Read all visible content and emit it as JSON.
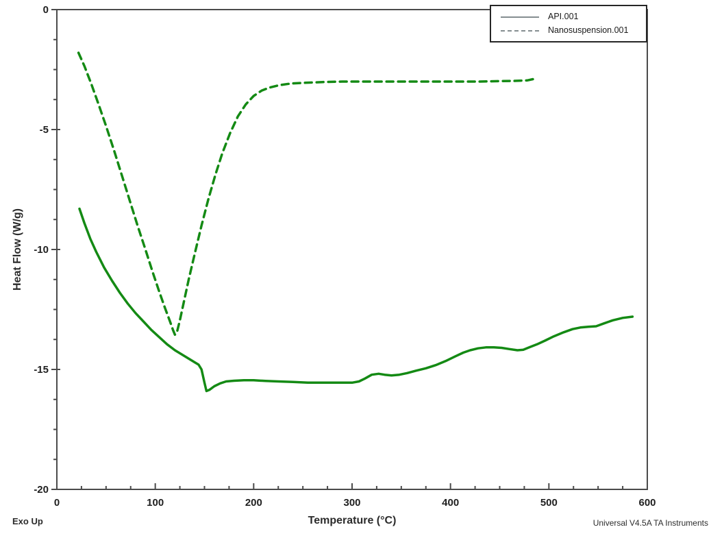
{
  "chart_data": {
    "type": "line",
    "title": "",
    "xlabel": "Temperature (°C)",
    "ylabel": "Heat Flow (W/g)",
    "xlim": [
      0,
      600
    ],
    "ylim": [
      -20,
      0
    ],
    "x_ticks": [
      0,
      100,
      200,
      300,
      400,
      500,
      600
    ],
    "y_ticks": [
      0,
      -5,
      -10,
      -15,
      -20
    ],
    "x_minor_step": 25,
    "y_minor_step": 1.25,
    "grid": false,
    "legend_position": "top-right",
    "series": [
      {
        "name": "API.001",
        "style": "solid",
        "color": "#148a14",
        "points": [
          [
            23,
            -8.3
          ],
          [
            28,
            -8.9
          ],
          [
            34,
            -9.55
          ],
          [
            40,
            -10.1
          ],
          [
            48,
            -10.75
          ],
          [
            56,
            -11.3
          ],
          [
            64,
            -11.8
          ],
          [
            72,
            -12.25
          ],
          [
            80,
            -12.65
          ],
          [
            88,
            -13.0
          ],
          [
            96,
            -13.35
          ],
          [
            104,
            -13.65
          ],
          [
            112,
            -13.95
          ],
          [
            120,
            -14.2
          ],
          [
            128,
            -14.4
          ],
          [
            134,
            -14.55
          ],
          [
            140,
            -14.7
          ],
          [
            144,
            -14.8
          ],
          [
            147,
            -15.0
          ],
          [
            150,
            -15.55
          ],
          [
            152,
            -15.9
          ],
          [
            155,
            -15.85
          ],
          [
            160,
            -15.7
          ],
          [
            166,
            -15.58
          ],
          [
            172,
            -15.5
          ],
          [
            180,
            -15.47
          ],
          [
            190,
            -15.45
          ],
          [
            200,
            -15.45
          ],
          [
            212,
            -15.48
          ],
          [
            225,
            -15.5
          ],
          [
            240,
            -15.52
          ],
          [
            255,
            -15.55
          ],
          [
            270,
            -15.55
          ],
          [
            285,
            -15.55
          ],
          [
            300,
            -15.55
          ],
          [
            307,
            -15.5
          ],
          [
            313,
            -15.38
          ],
          [
            320,
            -15.22
          ],
          [
            327,
            -15.18
          ],
          [
            333,
            -15.22
          ],
          [
            340,
            -15.25
          ],
          [
            348,
            -15.22
          ],
          [
            356,
            -15.15
          ],
          [
            365,
            -15.05
          ],
          [
            375,
            -14.95
          ],
          [
            385,
            -14.82
          ],
          [
            395,
            -14.65
          ],
          [
            405,
            -14.45
          ],
          [
            413,
            -14.3
          ],
          [
            420,
            -14.2
          ],
          [
            428,
            -14.12
          ],
          [
            436,
            -14.08
          ],
          [
            444,
            -14.08
          ],
          [
            452,
            -14.1
          ],
          [
            460,
            -14.15
          ],
          [
            468,
            -14.2
          ],
          [
            474,
            -14.18
          ],
          [
            480,
            -14.08
          ],
          [
            488,
            -13.95
          ],
          [
            496,
            -13.8
          ],
          [
            505,
            -13.62
          ],
          [
            515,
            -13.45
          ],
          [
            524,
            -13.32
          ],
          [
            532,
            -13.25
          ],
          [
            540,
            -13.22
          ],
          [
            548,
            -13.2
          ],
          [
            556,
            -13.08
          ],
          [
            565,
            -12.95
          ],
          [
            575,
            -12.85
          ],
          [
            585,
            -12.8
          ]
        ]
      },
      {
        "name": "Nanosuspension.001",
        "style": "dashed",
        "color": "#148a14",
        "points": [
          [
            22,
            -1.8
          ],
          [
            28,
            -2.35
          ],
          [
            35,
            -3.1
          ],
          [
            42,
            -3.9
          ],
          [
            50,
            -4.85
          ],
          [
            58,
            -5.85
          ],
          [
            66,
            -6.9
          ],
          [
            74,
            -7.95
          ],
          [
            82,
            -9.0
          ],
          [
            90,
            -10.0
          ],
          [
            97,
            -10.9
          ],
          [
            104,
            -11.75
          ],
          [
            110,
            -12.45
          ],
          [
            115,
            -13.0
          ],
          [
            118,
            -13.35
          ],
          [
            120,
            -13.55
          ],
          [
            122,
            -13.45
          ],
          [
            125,
            -12.95
          ],
          [
            129,
            -12.2
          ],
          [
            134,
            -11.25
          ],
          [
            140,
            -10.2
          ],
          [
            147,
            -9.0
          ],
          [
            154,
            -7.9
          ],
          [
            161,
            -6.9
          ],
          [
            168,
            -6.0
          ],
          [
            176,
            -5.15
          ],
          [
            184,
            -4.45
          ],
          [
            192,
            -3.95
          ],
          [
            200,
            -3.6
          ],
          [
            208,
            -3.38
          ],
          [
            216,
            -3.25
          ],
          [
            226,
            -3.15
          ],
          [
            238,
            -3.08
          ],
          [
            252,
            -3.05
          ],
          [
            270,
            -3.02
          ],
          [
            290,
            -3.0
          ],
          [
            310,
            -3.0
          ],
          [
            330,
            -3.0
          ],
          [
            350,
            -3.0
          ],
          [
            370,
            -3.0
          ],
          [
            390,
            -3.0
          ],
          [
            410,
            -3.0
          ],
          [
            430,
            -3.0
          ],
          [
            450,
            -2.98
          ],
          [
            465,
            -2.97
          ],
          [
            478,
            -2.95
          ],
          [
            486,
            -2.88
          ]
        ]
      }
    ]
  },
  "footer": {
    "exo_up": "Exo Up",
    "instrument": "Universal V4.5A TA Instruments"
  },
  "colors": {
    "curve_green": "#148a14",
    "axis": "#4a4a4a",
    "tick_text": "#1f1f1f",
    "legend_sample": "#848d90",
    "legend_border": "#262626",
    "background": "#ffffff"
  }
}
